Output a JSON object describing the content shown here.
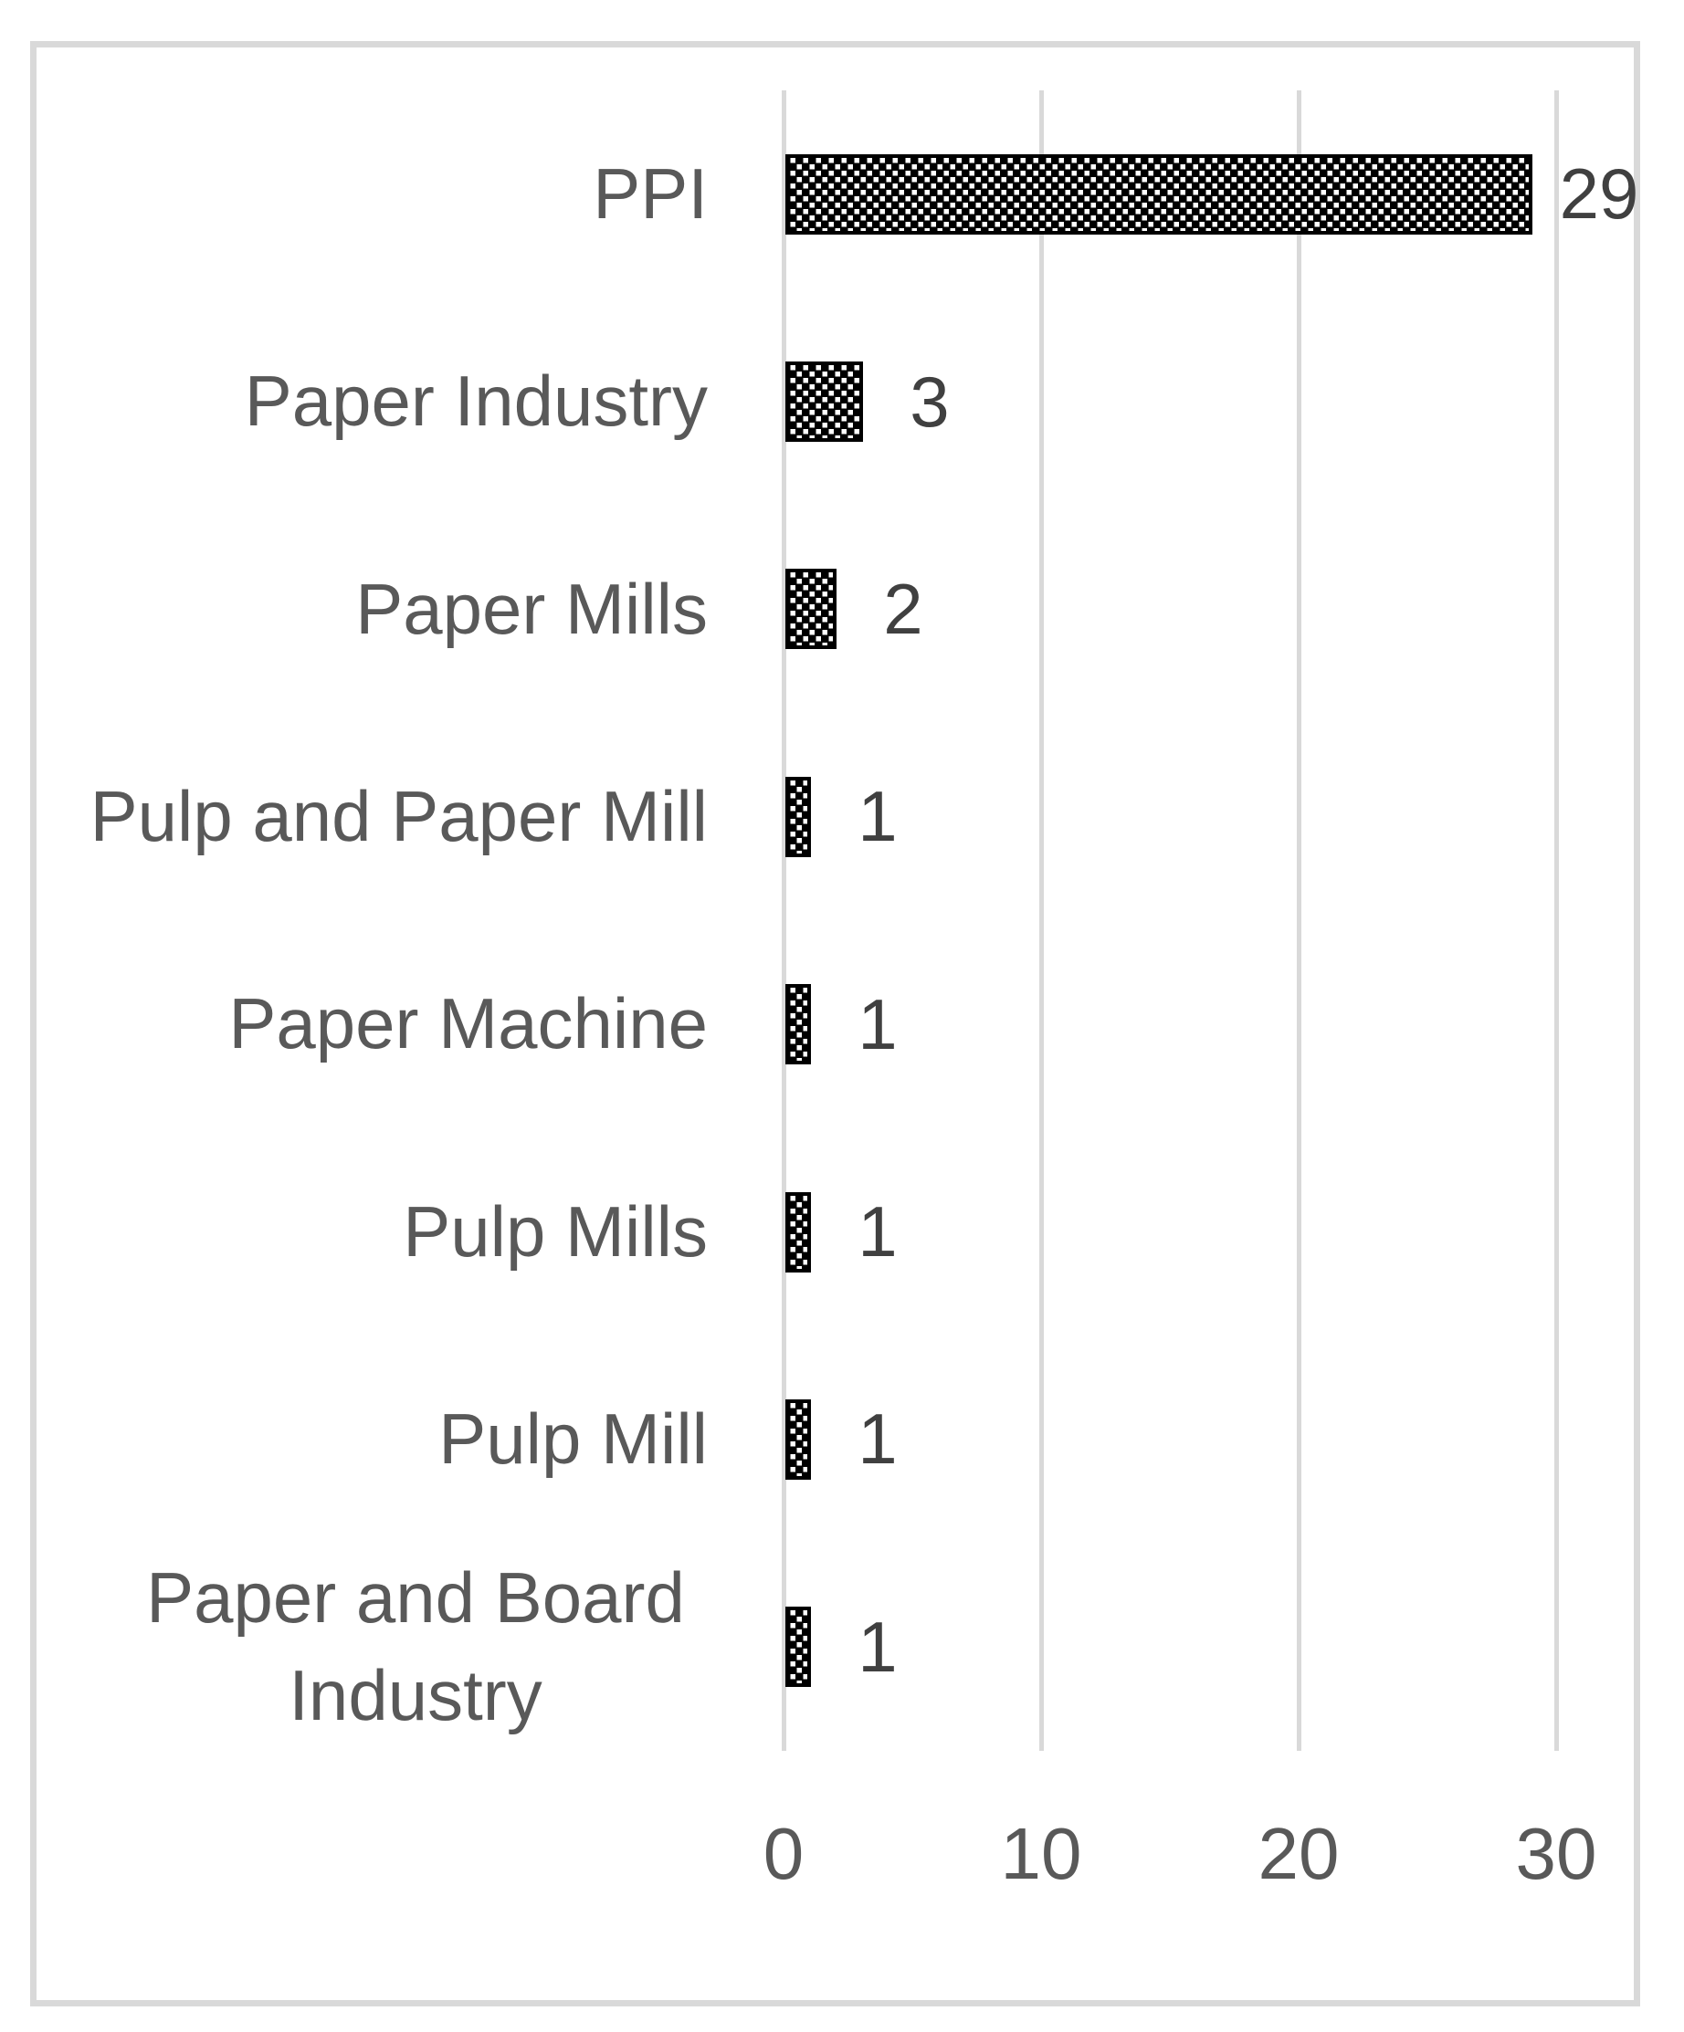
{
  "page": {
    "background": "#ffffff"
  },
  "chart_data": {
    "type": "bar",
    "orientation": "horizontal",
    "title": "",
    "categories": [
      "PPI",
      "Paper Industry",
      "Paper Mills",
      "Pulp and Paper Mill",
      "Paper Machine",
      "Pulp Mills",
      "Pulp Mill",
      "Paper and Board Industry"
    ],
    "values": [
      29,
      3,
      2,
      1,
      1,
      1,
      1,
      1
    ],
    "data_labels": [
      "29",
      "3",
      "2",
      "1",
      "1",
      "1",
      "1",
      "1"
    ],
    "x_ticks": [
      "0",
      "10",
      "20",
      "30"
    ],
    "x_tick_values": [
      0,
      10,
      20,
      30
    ],
    "xlim": [
      0,
      30
    ],
    "xlabel": "",
    "ylabel": "",
    "grid": true,
    "legend": false,
    "data_label_position": "outside-end",
    "bar_fill": {
      "pattern": "diagonal-checkerboard",
      "foreground": "#000000",
      "background": "#ffffff"
    },
    "colors": {
      "category_label": "#595959",
      "value_label": "#404040",
      "tick_label": "#595959",
      "gridline": "#d9d9d9",
      "chart_border": "#d9d9d9",
      "bar_border": "#000000"
    }
  }
}
